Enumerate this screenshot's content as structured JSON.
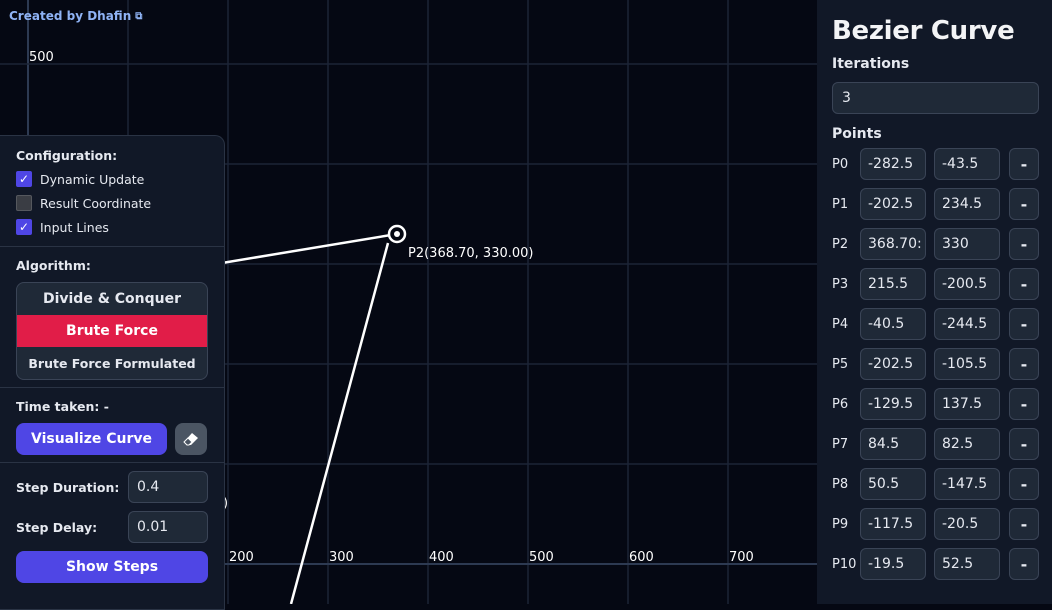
{
  "credit": {
    "label": "Created by Dhafin",
    "icon": "external-link-icon"
  },
  "canvas": {
    "colors": {
      "grid": "#1c2436",
      "axis": "#2d3a52",
      "curve": "#ffffff",
      "label": "#ffffff"
    },
    "x_tick_labels": [
      "200",
      "300",
      "400",
      "500",
      "600",
      "700"
    ],
    "y_tick_labels": [
      "500"
    ],
    "point_label": "P2(368.70, 330.00)",
    "partial_label": ")"
  },
  "config": {
    "title": "Configuration:",
    "options": [
      {
        "label": "Dynamic Update",
        "checked": true
      },
      {
        "label": "Result Coordinate",
        "checked": false
      },
      {
        "label": "Input Lines",
        "checked": true
      }
    ],
    "algorithm_label": "Algorithm:",
    "algorithms": [
      {
        "label": "Divide & Conquer",
        "active": false
      },
      {
        "label": "Brute Force",
        "active": true
      },
      {
        "label": "Brute Force Formulated",
        "active": false
      }
    ],
    "time_taken": "Time taken: -",
    "visualize_label": "Visualize Curve",
    "erase_icon": "eraser-icon",
    "step_duration_label": "Step Duration:",
    "step_duration_value": "0.4",
    "step_delay_label": "Step Delay:",
    "step_delay_value": "0.01",
    "show_steps_label": "Show Steps",
    "colors": {
      "primary": "#4f46e5",
      "active": "#e11d48",
      "panel": "#111827"
    }
  },
  "sidebar": {
    "title": "Bezier Curve",
    "iterations_label": "Iterations",
    "iterations_value": "3",
    "points_label": "Points",
    "remove_label": "-",
    "points": [
      {
        "name": "P0",
        "x": "-282.5",
        "y": "-43.5"
      },
      {
        "name": "P1",
        "x": "-202.5",
        "y": "234.5"
      },
      {
        "name": "P2",
        "x": "368.70:",
        "y": "330"
      },
      {
        "name": "P3",
        "x": "215.5",
        "y": "-200.5"
      },
      {
        "name": "P4",
        "x": "-40.5",
        "y": "-244.5"
      },
      {
        "name": "P5",
        "x": "-202.5",
        "y": "-105.5"
      },
      {
        "name": "P6",
        "x": "-129.5",
        "y": "137.5"
      },
      {
        "name": "P7",
        "x": "84.5",
        "y": "82.5"
      },
      {
        "name": "P8",
        "x": "50.5",
        "y": "-147.5"
      },
      {
        "name": "P9",
        "x": "-117.5",
        "y": "-20.5"
      },
      {
        "name": "P10",
        "x": "-19.5",
        "y": "52.5"
      }
    ]
  }
}
